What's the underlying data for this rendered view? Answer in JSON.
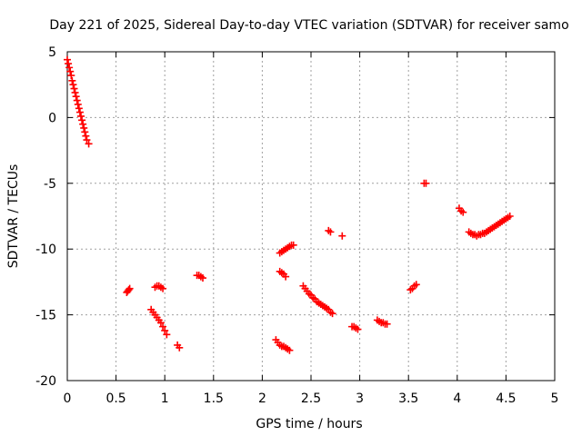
{
  "chart_data": {
    "type": "scatter",
    "title": "Day 221 of 2025, Sidereal Day-to-day VTEC variation (SDTVAR) for receiver samo",
    "xlabel": "GPS time / hours",
    "ylabel": "SDTVAR / TECUs",
    "xlim": [
      0,
      5
    ],
    "ylim": [
      -20,
      5
    ],
    "xticks": [
      0,
      0.5,
      1,
      1.5,
      2,
      2.5,
      3,
      3.5,
      4,
      4.5,
      5
    ],
    "xtick_labels": [
      "0",
      "0.5",
      "1",
      "1.5",
      "2",
      "2.5",
      "3",
      "3.5",
      "4",
      "4.5",
      "5"
    ],
    "yticks": [
      5,
      0,
      -5,
      -10,
      -15,
      -20
    ],
    "ytick_labels": [
      "5",
      "0",
      "-5",
      "-10",
      "-15",
      "-20"
    ],
    "grid": true,
    "marker": "+",
    "marker_color": "#ff0000",
    "series": [
      {
        "name": "SDTVAR",
        "points": [
          [
            0.0,
            4.4
          ],
          [
            0.01,
            4.1
          ],
          [
            0.02,
            3.8
          ],
          [
            0.03,
            3.5
          ],
          [
            0.04,
            3.2
          ],
          [
            0.05,
            2.8
          ],
          [
            0.06,
            2.5
          ],
          [
            0.07,
            2.2
          ],
          [
            0.08,
            1.9
          ],
          [
            0.09,
            1.6
          ],
          [
            0.1,
            1.3
          ],
          [
            0.11,
            1.0
          ],
          [
            0.12,
            0.7
          ],
          [
            0.13,
            0.4
          ],
          [
            0.14,
            0.1
          ],
          [
            0.15,
            -0.2
          ],
          [
            0.16,
            -0.5
          ],
          [
            0.17,
            -0.8
          ],
          [
            0.18,
            -1.1
          ],
          [
            0.19,
            -1.4
          ],
          [
            0.2,
            -1.7
          ],
          [
            0.22,
            -2.0
          ],
          [
            0.61,
            -13.3
          ],
          [
            0.62,
            -13.2
          ],
          [
            0.63,
            -13.1
          ],
          [
            0.64,
            -13.0
          ],
          [
            0.86,
            -14.6
          ],
          [
            0.88,
            -14.8
          ],
          [
            0.9,
            -15.0
          ],
          [
            0.92,
            -15.2
          ],
          [
            0.94,
            -15.4
          ],
          [
            0.96,
            -15.6
          ],
          [
            0.98,
            -15.9
          ],
          [
            1.0,
            -16.2
          ],
          [
            1.02,
            -16.5
          ],
          [
            0.9,
            -12.9
          ],
          [
            0.92,
            -12.8
          ],
          [
            0.94,
            -12.8
          ],
          [
            0.96,
            -12.9
          ],
          [
            0.98,
            -13.0
          ],
          [
            1.13,
            -17.3
          ],
          [
            1.15,
            -17.5
          ],
          [
            1.33,
            -12.0
          ],
          [
            1.35,
            -12.0
          ],
          [
            1.37,
            -12.1
          ],
          [
            1.39,
            -12.2
          ],
          [
            2.14,
            -16.9
          ],
          [
            2.16,
            -17.1
          ],
          [
            2.18,
            -17.3
          ],
          [
            2.2,
            -17.4
          ],
          [
            2.22,
            -17.4
          ],
          [
            2.24,
            -17.5
          ],
          [
            2.26,
            -17.6
          ],
          [
            2.28,
            -17.7
          ],
          [
            2.18,
            -11.7
          ],
          [
            2.2,
            -11.8
          ],
          [
            2.22,
            -11.9
          ],
          [
            2.24,
            -12.1
          ],
          [
            2.18,
            -10.3
          ],
          [
            2.2,
            -10.2
          ],
          [
            2.22,
            -10.1
          ],
          [
            2.24,
            -10.0
          ],
          [
            2.26,
            -9.9
          ],
          [
            2.28,
            -9.8
          ],
          [
            2.3,
            -9.7
          ],
          [
            2.32,
            -9.7
          ],
          [
            2.42,
            -12.8
          ],
          [
            2.44,
            -13.0
          ],
          [
            2.46,
            -13.2
          ],
          [
            2.48,
            -13.4
          ],
          [
            2.5,
            -13.5
          ],
          [
            2.52,
            -13.7
          ],
          [
            2.54,
            -13.8
          ],
          [
            2.56,
            -14.0
          ],
          [
            2.58,
            -14.1
          ],
          [
            2.6,
            -14.2
          ],
          [
            2.62,
            -14.3
          ],
          [
            2.64,
            -14.4
          ],
          [
            2.66,
            -14.5
          ],
          [
            2.68,
            -14.6
          ],
          [
            2.7,
            -14.8
          ],
          [
            2.72,
            -14.9
          ],
          [
            2.68,
            -8.6
          ],
          [
            2.7,
            -8.7
          ],
          [
            2.82,
            -9.0
          ],
          [
            2.92,
            -15.9
          ],
          [
            2.94,
            -15.9
          ],
          [
            2.96,
            -16.0
          ],
          [
            2.98,
            -16.1
          ],
          [
            3.18,
            -15.4
          ],
          [
            3.2,
            -15.5
          ],
          [
            3.22,
            -15.6
          ],
          [
            3.24,
            -15.6
          ],
          [
            3.26,
            -15.7
          ],
          [
            3.28,
            -15.7
          ],
          [
            3.52,
            -13.1
          ],
          [
            3.54,
            -13.0
          ],
          [
            3.56,
            -12.8
          ],
          [
            3.58,
            -12.7
          ],
          [
            3.66,
            -5.0
          ],
          [
            3.68,
            -5.0
          ],
          [
            4.02,
            -6.9
          ],
          [
            4.04,
            -7.1
          ],
          [
            4.06,
            -7.2
          ],
          [
            4.12,
            -8.7
          ],
          [
            4.14,
            -8.8
          ],
          [
            4.16,
            -8.9
          ],
          [
            4.18,
            -8.9
          ],
          [
            4.2,
            -9.0
          ],
          [
            4.22,
            -8.9
          ],
          [
            4.24,
            -8.9
          ],
          [
            4.26,
            -8.8
          ],
          [
            4.28,
            -8.8
          ],
          [
            4.3,
            -8.7
          ],
          [
            4.32,
            -8.6
          ],
          [
            4.34,
            -8.5
          ],
          [
            4.36,
            -8.4
          ],
          [
            4.38,
            -8.3
          ],
          [
            4.4,
            -8.2
          ],
          [
            4.42,
            -8.1
          ],
          [
            4.44,
            -8.0
          ],
          [
            4.46,
            -7.9
          ],
          [
            4.48,
            -7.8
          ],
          [
            4.5,
            -7.7
          ],
          [
            4.52,
            -7.6
          ],
          [
            4.54,
            -7.5
          ]
        ]
      }
    ]
  }
}
